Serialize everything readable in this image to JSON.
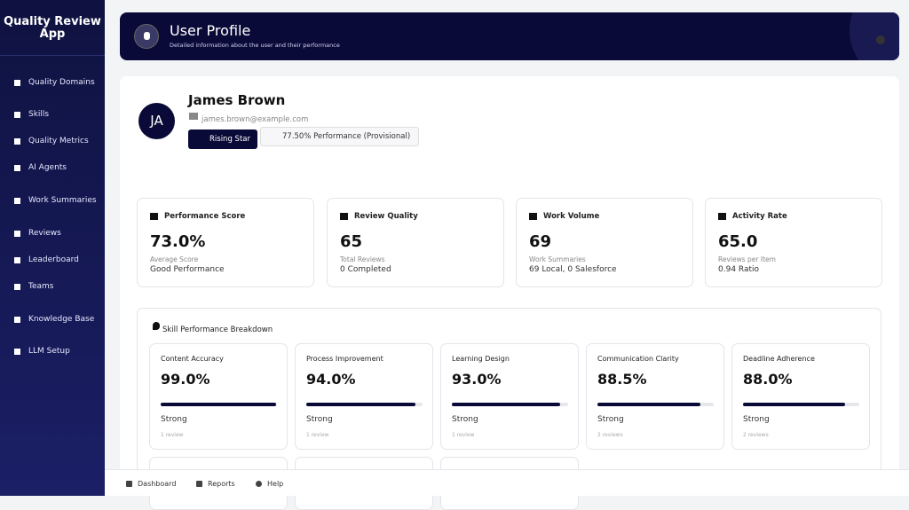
{
  "sidebar": {
    "title": "Quality Review App",
    "nav": [
      "Quality Domains",
      "Skills",
      "Quality Metrics",
      "AI Agents",
      "Work Summaries",
      "Reviews",
      "Leaderboard",
      "Teams",
      "Knowledge Base",
      "LLM Setup"
    ]
  },
  "header": {
    "title": "User Profile",
    "subtitle": "Detailed information about the user and their performance"
  },
  "profile": {
    "initials": "JA",
    "name": "James Brown",
    "email": "james.brown@example.com",
    "badge": "Rising Star",
    "performance": "77.50% Performance (Provisional)"
  },
  "stats": [
    {
      "title": "Performance Score",
      "value": "73.0%",
      "label": "Average Score",
      "detail": "Good Performance"
    },
    {
      "title": "Review Quality",
      "value": "65",
      "label": "Total Reviews",
      "detail": "0 Completed"
    },
    {
      "title": "Work Volume",
      "value": "69",
      "label": "Work Summaries",
      "detail": "69 Local, 0 Salesforce"
    },
    {
      "title": "Activity Rate",
      "value": "65.0",
      "label": "Reviews per Item",
      "detail": "0.94 Ratio"
    }
  ],
  "skills": {
    "title": "Skill Performance Breakdown",
    "items": [
      {
        "name": "Content Accuracy",
        "score": {
          "value": 99,
          "label": "99.0%"
        },
        "level": "Strong",
        "reviews": "1 review"
      },
      {
        "name": "Process Improvement",
        "score": {
          "value": 94,
          "label": "94.0%"
        },
        "level": "Strong",
        "reviews": "1 review"
      },
      {
        "name": "Learning Design",
        "score": {
          "value": 93,
          "label": "93.0%"
        },
        "level": "Strong",
        "reviews": "1 review"
      },
      {
        "name": "Communication Clarity",
        "score": {
          "value": 88.5,
          "label": "88.5%"
        },
        "level": "Strong",
        "reviews": "2 reviews"
      },
      {
        "name": "Deadline Adherence",
        "score": {
          "value": 88,
          "label": "88.0%"
        },
        "level": "Strong",
        "reviews": "2 reviews"
      }
    ]
  },
  "footer": [
    "Dashboard",
    "Reports",
    "Help"
  ]
}
